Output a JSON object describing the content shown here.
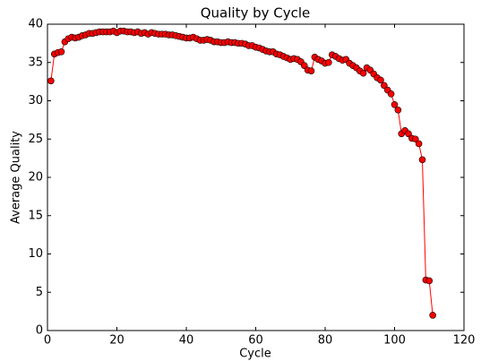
{
  "chart_data": {
    "type": "line",
    "title": "Quality by Cycle",
    "x_label": "Cycle",
    "y_label": "Average Quality",
    "x": [
      1,
      2,
      3,
      4,
      5,
      6,
      7,
      8,
      9,
      10,
      11,
      12,
      13,
      14,
      15,
      16,
      17,
      18,
      19,
      20,
      21,
      22,
      23,
      24,
      25,
      26,
      27,
      28,
      29,
      30,
      31,
      32,
      33,
      34,
      35,
      36,
      37,
      38,
      39,
      40,
      41,
      42,
      43,
      44,
      45,
      46,
      47,
      48,
      49,
      50,
      51,
      52,
      53,
      54,
      55,
      56,
      57,
      58,
      59,
      60,
      61,
      62,
      63,
      64,
      65,
      66,
      67,
      68,
      69,
      70,
      71,
      72,
      73,
      74,
      75,
      76,
      77,
      78,
      79,
      80,
      81,
      82,
      83,
      84,
      85,
      86,
      87,
      88,
      89,
      90,
      91,
      92,
      93,
      94,
      95,
      96,
      97,
      98,
      99,
      100,
      101,
      102,
      103,
      104,
      105,
      106,
      107,
      108,
      109,
      110,
      111
    ],
    "series": [
      {
        "name": "Average Quality",
        "color": "#ff0000",
        "values": [
          32.6,
          36.1,
          36.3,
          36.4,
          37.7,
          38.1,
          38.3,
          38.2,
          38.3,
          38.5,
          38.6,
          38.8,
          38.8,
          38.9,
          39.0,
          39.0,
          39.0,
          39.0,
          39.1,
          38.9,
          39.1,
          39.1,
          39.0,
          39.0,
          38.9,
          39.0,
          38.8,
          38.9,
          38.7,
          38.9,
          38.8,
          38.7,
          38.7,
          38.7,
          38.6,
          38.6,
          38.5,
          38.4,
          38.3,
          38.2,
          38.2,
          38.3,
          38.1,
          37.9,
          37.9,
          38.0,
          37.9,
          37.7,
          37.7,
          37.6,
          37.6,
          37.7,
          37.6,
          37.6,
          37.5,
          37.5,
          37.4,
          37.2,
          37.2,
          37.0,
          36.9,
          36.7,
          36.5,
          36.4,
          36.4,
          36.1,
          36.0,
          35.8,
          35.6,
          35.4,
          35.5,
          35.4,
          35.1,
          34.6,
          34.0,
          33.9,
          35.7,
          35.4,
          35.2,
          34.9,
          35.0,
          36.0,
          35.8,
          35.5,
          35.3,
          35.4,
          34.9,
          34.6,
          34.3,
          33.9,
          33.6,
          34.3,
          34.0,
          33.5,
          33.0,
          32.7,
          32.0,
          31.4,
          30.9,
          29.5,
          28.8,
          25.7,
          26.1,
          25.7,
          25.1,
          25.0,
          24.4,
          22.3,
          6.6,
          6.5,
          2.0
        ]
      }
    ],
    "xlim": [
      0,
      120
    ],
    "xticks": [
      0,
      20,
      40,
      60,
      80,
      100,
      120
    ],
    "ylim": [
      0,
      40
    ],
    "yticks": [
      0,
      5,
      10,
      15,
      20,
      25,
      30,
      35,
      40
    ],
    "grid": false
  }
}
